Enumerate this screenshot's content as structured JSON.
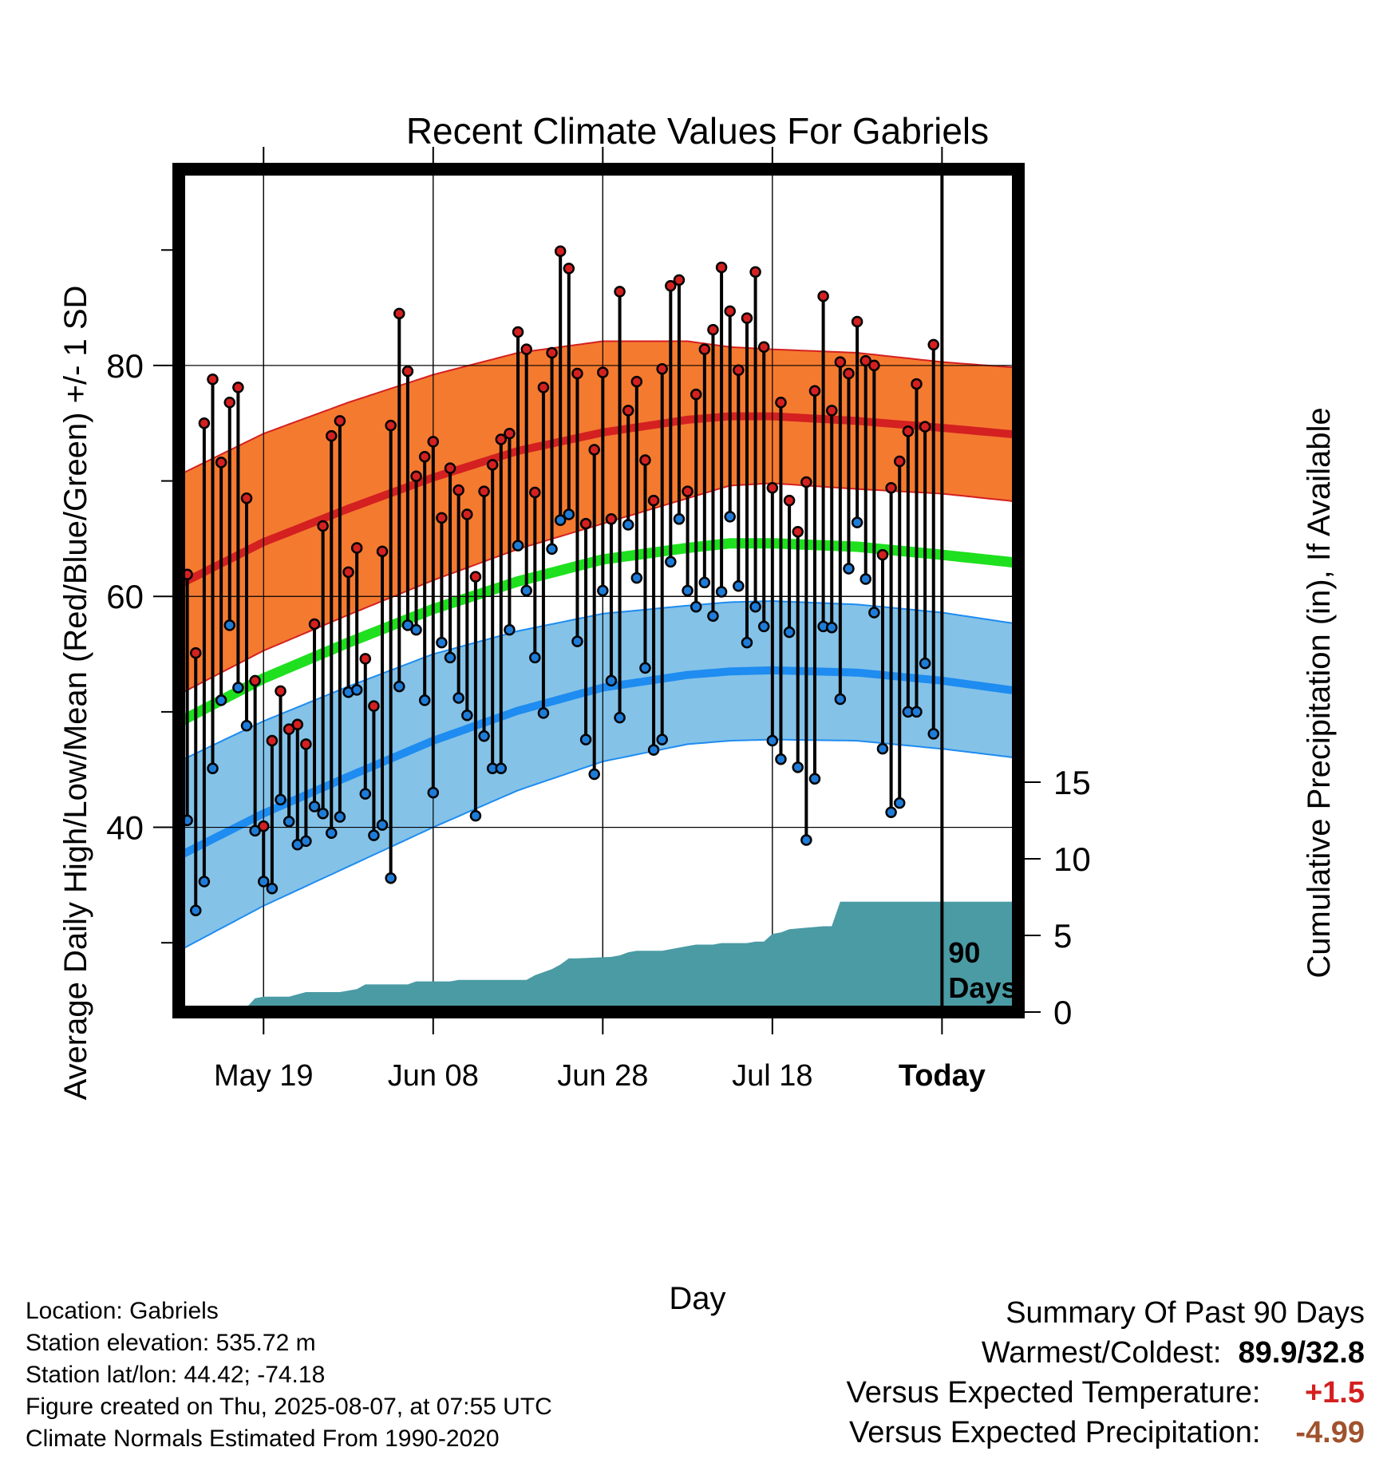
{
  "chart_data": {
    "type": "line",
    "title": "Recent Climate Values For Gabriels",
    "xlabel": "Day",
    "ylabel": "Average Daily High/Low/Mean (Red/Blue/Green) +/- 1 SD",
    "y2label": "Cumulative Precipitation (in), If Available",
    "xticks": [
      {
        "day": 10,
        "label": "May 19"
      },
      {
        "day": 30,
        "label": "Jun 08"
      },
      {
        "day": 50,
        "label": "Jun 28"
      },
      {
        "day": 70,
        "label": "Jul 18"
      },
      {
        "day": 90,
        "label": "Today"
      }
    ],
    "yticks": [
      40,
      60,
      80
    ],
    "y2ticks": [
      0,
      5,
      10,
      15
    ],
    "xlim": [
      0,
      99
    ],
    "ylim": [
      24,
      97
    ],
    "y2lim": [
      0,
      55
    ],
    "today_marker": {
      "day": 90,
      "label_line1": "90",
      "label_line2": "Days"
    },
    "grid": true,
    "colors": {
      "high_fill": "#F47A30",
      "high_line": "#D42020",
      "low_fill": "#84C2E8",
      "low_line": "#1E8CF0",
      "mean_line": "#1EE01E",
      "precip_fill": "#4A9BA4",
      "high_dot": "#D42020",
      "low_dot": "#1E7CD8"
    },
    "normals": {
      "days": [
        0,
        10,
        20,
        30,
        40,
        50,
        60,
        65,
        70,
        80,
        90,
        99
      ],
      "high_mean": [
        61,
        64.7,
        67.6,
        70.3,
        72.6,
        74.2,
        75.3,
        75.6,
        75.6,
        75.2,
        74.6,
        74
      ],
      "high_sd": [
        9.5,
        9.4,
        9.2,
        8.9,
        8.5,
        7.9,
        6.8,
        6,
        5.8,
        5.9,
        5.7,
        5.8
      ],
      "low_mean": [
        37.5,
        41.2,
        44.4,
        47.5,
        50.1,
        52.1,
        53.2,
        53.5,
        53.6,
        53.4,
        52.7,
        51.8
      ],
      "low_sd": [
        8.2,
        8,
        7.8,
        7.5,
        6.9,
        6.4,
        6,
        6,
        6,
        5.9,
        5.9,
        5.8
      ],
      "mean": [
        49.1,
        52.9,
        56,
        58.9,
        61.3,
        63.2,
        64.2,
        64.6,
        64.6,
        64.3,
        63.6,
        62.9
      ]
    },
    "daily_high": [
      45.3,
      61.9,
      55.1,
      75,
      78.8,
      71.6,
      76.8,
      78.1,
      68.5,
      52.7,
      40.1,
      47.5,
      51.8,
      48.5,
      48.9,
      47.2,
      57.6,
      66.1,
      73.9,
      75.2,
      62.1,
      64.2,
      54.6,
      50.5,
      63.9,
      74.8,
      84.5,
      79.5,
      70.4,
      72.1,
      73.4,
      66.8,
      71.1,
      69.2,
      67.1,
      61.7,
      69.1,
      71.4,
      73.6,
      74.1,
      82.9,
      81.4,
      69,
      78.1,
      81.1,
      89.9,
      88.4,
      79.3,
      66.3,
      72.7,
      79.4,
      66.7,
      86.4,
      76.1,
      78.6,
      71.8,
      68.3,
      79.7,
      86.9,
      87.4,
      69.1,
      77.5,
      81.4,
      83.1,
      88.5,
      84.7,
      79.6,
      84.1,
      88.1,
      81.6,
      69.4,
      76.8,
      68.3,
      65.6,
      69.9,
      77.8,
      86,
      76.1,
      80.3,
      79.3,
      83.8,
      80.4,
      80,
      63.6,
      69.4,
      71.7,
      74.3,
      78.4,
      74.7,
      81.8
    ],
    "daily_low": [
      39.2,
      40.6,
      32.8,
      35.3,
      45.1,
      51,
      57.5,
      52.1,
      48.8,
      39.7,
      35.3,
      34.7,
      42.4,
      40.5,
      38.5,
      38.8,
      41.8,
      41.2,
      39.5,
      40.9,
      51.7,
      51.9,
      42.9,
      39.3,
      40.2,
      35.6,
      52.2,
      57.5,
      57.1,
      51,
      43,
      56,
      54.7,
      51.2,
      49.7,
      41,
      47.9,
      45.1,
      45.1,
      57.1,
      64.4,
      60.5,
      54.7,
      49.9,
      64.1,
      66.6,
      67.1,
      56.1,
      47.6,
      44.6,
      60.5,
      52.7,
      49.5,
      66.2,
      61.6,
      53.8,
      46.7,
      47.6,
      63,
      66.7,
      60.5,
      59.1,
      61.2,
      58.3,
      60.4,
      66.9,
      60.9,
      56,
      59.1,
      57.4,
      47.5,
      45.9,
      56.9,
      45.2,
      38.9,
      44.2,
      57.4,
      57.3,
      51.1,
      62.4,
      66.4,
      61.5,
      58.6,
      46.8,
      41.3,
      42.1,
      50,
      50,
      54.2,
      48.1
    ],
    "precip": {
      "days": [
        0,
        7,
        8,
        9,
        10,
        13,
        15,
        19,
        21,
        22,
        27,
        28,
        29,
        32,
        33,
        41,
        42,
        44,
        45,
        46,
        47,
        51,
        52,
        53,
        54,
        57,
        58,
        60,
        61,
        63,
        64,
        67,
        68,
        69,
        70,
        71,
        72,
        76,
        77,
        78,
        79,
        99
      ],
      "values": [
        0.2,
        0.2,
        0.3,
        0.9,
        1,
        1,
        1.3,
        1.3,
        1.5,
        1.8,
        1.8,
        2,
        2,
        2,
        2.1,
        2.1,
        2.4,
        2.8,
        3.1,
        3.5,
        3.5,
        3.6,
        3.7,
        3.9,
        4,
        4,
        4.1,
        4.3,
        4.4,
        4.4,
        4.5,
        4.5,
        4.6,
        4.6,
        5.1,
        5.2,
        5.4,
        5.6,
        5.6,
        7.2,
        7.2,
        7.2
      ]
    }
  },
  "station_info": [
    "Location: Gabriels",
    "Station elevation: 535.72 m",
    "Station lat/lon: 44.42; -74.18",
    "Figure created on Thu, 2025-08-07, at 07:55 UTC",
    "Climate Normals Estimated From 1990-2020"
  ],
  "summary": {
    "title": "Summary Of Past 90 Days",
    "warmest_coldest_label": "Warmest/Coldest:",
    "warmest_coldest_value": "89.9/32.8",
    "temp_label": "Versus Expected Temperature:",
    "temp_value": "+1.5",
    "temp_color": "#D42020",
    "precip_label": "Versus Expected Precipitation:",
    "precip_value": "-4.99",
    "precip_color": "#A0522D"
  }
}
